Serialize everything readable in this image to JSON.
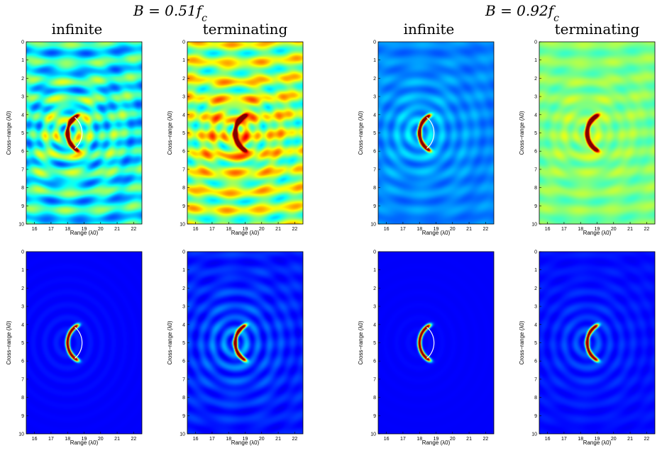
{
  "figure": {
    "groups": [
      {
        "title": "B = 0.51f",
        "title_sub": "c",
        "columns": [
          "infinite",
          "terminating"
        ]
      },
      {
        "title": "B = 0.92f",
        "title_sub": "c",
        "columns": [
          "infinite",
          "terminating"
        ]
      }
    ],
    "colormap": "jet"
  },
  "chart_data": [
    {
      "type": "heatmap",
      "group": "B = 0.51f_c",
      "column": "infinite",
      "row": 1,
      "xlabel": "Range (λ0)",
      "ylabel": "Cross−range (λ0)",
      "xlim": [
        15.5,
        22.5
      ],
      "ylim": [
        10,
        0
      ],
      "xticks": [
        16,
        17,
        18,
        19,
        20,
        21,
        22
      ],
      "yticks": [
        0,
        1,
        2,
        3,
        4,
        5,
        6,
        7,
        8,
        9,
        10
      ],
      "background": 0.25,
      "stripes": 0.22,
      "rings": 0.3,
      "arc_peak": 1.0,
      "arc_center": [
        18.0,
        5.0
      ],
      "overlay_arc": true
    },
    {
      "type": "heatmap",
      "group": "B = 0.51f_c",
      "column": "terminating",
      "row": 1,
      "xlabel": "Range (λ0)",
      "ylabel": "Cross−range (λ0)",
      "xlim": [
        15.5,
        22.5
      ],
      "ylim": [
        10,
        0
      ],
      "xticks": [
        16,
        17,
        18,
        19,
        20,
        21,
        22
      ],
      "yticks": [
        0,
        1,
        2,
        3,
        4,
        5,
        6,
        7,
        8,
        9,
        10
      ],
      "background": 0.4,
      "stripes": 0.25,
      "rings": 0.25,
      "arc_peak": 1.0,
      "arc_center": [
        18.4,
        5.0
      ],
      "overlay_arc": false
    },
    {
      "type": "heatmap",
      "group": "B = 0.92f_c",
      "column": "infinite",
      "row": 1,
      "xlabel": "Range (λ0)",
      "ylabel": "Cross−range (λ0)",
      "xlim": [
        15.5,
        22.5
      ],
      "ylim": [
        10,
        0
      ],
      "xticks": [
        16,
        17,
        18,
        19,
        20,
        21,
        22
      ],
      "yticks": [
        0,
        1,
        2,
        3,
        4,
        5,
        6,
        7,
        8,
        9,
        10
      ],
      "background": 0.22,
      "stripes": 0.05,
      "rings": 0.15,
      "arc_peak": 1.0,
      "arc_center": [
        18.0,
        5.0
      ],
      "overlay_arc": true
    },
    {
      "type": "heatmap",
      "group": "B = 0.92f_c",
      "column": "terminating",
      "row": 1,
      "xlabel": "Range (λ0)",
      "ylabel": "Cross−range (λ0)",
      "xlim": [
        15.5,
        22.5
      ],
      "ylim": [
        10,
        0
      ],
      "xticks": [
        16,
        17,
        18,
        19,
        20,
        21,
        22
      ],
      "yticks": [
        0,
        1,
        2,
        3,
        4,
        5,
        6,
        7,
        8,
        9,
        10
      ],
      "background": 0.45,
      "stripes": 0.08,
      "rings": 0.1,
      "arc_peak": 1.0,
      "arc_center": [
        18.4,
        5.0
      ],
      "overlay_arc": false
    },
    {
      "type": "heatmap",
      "group": "B = 0.51f_c",
      "column": "infinite",
      "row": 2,
      "xlabel": "Range (λ0)",
      "ylabel": "Cross−range (λ0)",
      "xlim": [
        15.5,
        22.5
      ],
      "ylim": [
        10,
        0
      ],
      "xticks": [
        16,
        17,
        18,
        19,
        20,
        21,
        22
      ],
      "yticks": [
        0,
        1,
        2,
        3,
        4,
        5,
        6,
        7,
        8,
        9,
        10
      ],
      "background": 0.12,
      "stripes": 0.0,
      "rings": 0.05,
      "arc_peak": 1.0,
      "arc_center": [
        18.0,
        5.0
      ],
      "overlay_arc": true
    },
    {
      "type": "heatmap",
      "group": "B = 0.51f_c",
      "column": "terminating",
      "row": 2,
      "xlabel": "Range (λ0)",
      "ylabel": "Cross−range (λ0)",
      "xlim": [
        15.5,
        22.5
      ],
      "ylim": [
        10,
        0
      ],
      "xticks": [
        16,
        17,
        18,
        19,
        20,
        21,
        22
      ],
      "yticks": [
        0,
        1,
        2,
        3,
        4,
        5,
        6,
        7,
        8,
        9,
        10
      ],
      "background": 0.12,
      "stripes": 0.04,
      "rings": 0.2,
      "arc_peak": 1.0,
      "arc_center": [
        18.4,
        5.0
      ],
      "overlay_arc": false
    },
    {
      "type": "heatmap",
      "group": "B = 0.92f_c",
      "column": "infinite",
      "row": 2,
      "xlabel": "Range (λ0)",
      "ylabel": "Cross−range (λ0)",
      "xlim": [
        15.5,
        22.5
      ],
      "ylim": [
        10,
        0
      ],
      "xticks": [
        16,
        17,
        18,
        19,
        20,
        21,
        22
      ],
      "yticks": [
        0,
        1,
        2,
        3,
        4,
        5,
        6,
        7,
        8,
        9,
        10
      ],
      "background": 0.12,
      "stripes": 0.0,
      "rings": 0.02,
      "arc_peak": 1.0,
      "arc_center": [
        18.0,
        5.0
      ],
      "overlay_arc": true
    },
    {
      "type": "heatmap",
      "group": "B = 0.92f_c",
      "column": "terminating",
      "row": 2,
      "xlabel": "Range (λ0)",
      "ylabel": "Cross−range (λ0)",
      "xlim": [
        15.5,
        22.5
      ],
      "ylim": [
        10,
        0
      ],
      "xticks": [
        16,
        17,
        18,
        19,
        20,
        21,
        22
      ],
      "yticks": [
        0,
        1,
        2,
        3,
        4,
        5,
        6,
        7,
        8,
        9,
        10
      ],
      "background": 0.12,
      "stripes": 0.02,
      "rings": 0.12,
      "arc_peak": 1.0,
      "arc_center": [
        18.4,
        5.0
      ],
      "overlay_arc": false
    }
  ]
}
